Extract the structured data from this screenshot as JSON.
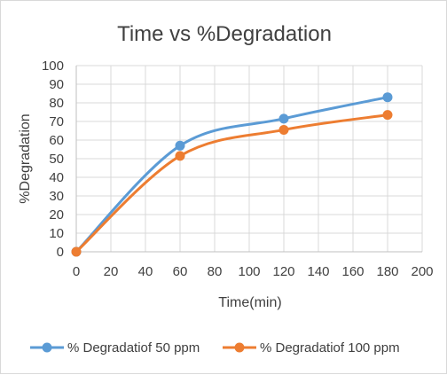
{
  "chart_data": {
    "type": "line",
    "title": "Time vs %Degradation",
    "xlabel": "Time(min)",
    "ylabel": "%Degradation",
    "xlim": [
      0,
      200
    ],
    "ylim": [
      0,
      100
    ],
    "x_ticks": [
      0,
      20,
      40,
      60,
      80,
      100,
      120,
      140,
      160,
      180,
      200
    ],
    "y_ticks": [
      0,
      10,
      20,
      30,
      40,
      50,
      60,
      70,
      80,
      90,
      100
    ],
    "grid": true,
    "smooth": true,
    "legend_position": "bottom",
    "series": [
      {
        "name": "% Degradatiof 50 ppm",
        "color": "#5b9bd5",
        "points": [
          [
            0,
            0
          ],
          [
            60,
            57
          ],
          [
            120,
            71.5
          ],
          [
            180,
            83
          ]
        ]
      },
      {
        "name": "% Degradatiof 100 ppm",
        "color": "#ed7d31",
        "points": [
          [
            0,
            0
          ],
          [
            60,
            51.5
          ],
          [
            120,
            65.5
          ],
          [
            180,
            73.5
          ]
        ]
      }
    ]
  }
}
